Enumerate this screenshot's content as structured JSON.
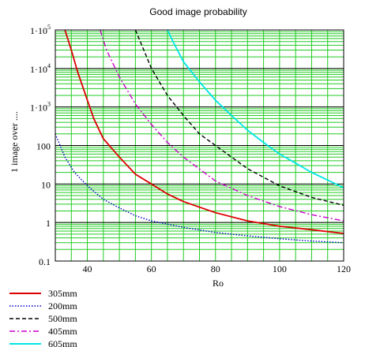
{
  "chart_data": {
    "type": "line",
    "title": "Good image probability",
    "xlabel": "Ro",
    "ylabel": "1 image over ....",
    "xlim": [
      30,
      120
    ],
    "ylim": [
      0.1,
      100000
    ],
    "yscale": "log",
    "grid": true,
    "grid_color": "#22cc22",
    "x_ticks": [
      40,
      60,
      80,
      100,
      120
    ],
    "x_tick_labels": [
      "40",
      "60",
      "80",
      "100",
      "120"
    ],
    "y_ticks": [
      0.1,
      1,
      10,
      100,
      1000,
      10000,
      100000
    ],
    "y_tick_labels": [
      {
        "base": "0.1",
        "exp": ""
      },
      {
        "base": "1",
        "exp": ""
      },
      {
        "base": "10",
        "exp": ""
      },
      {
        "base": "100",
        "exp": ""
      },
      {
        "base": "1·10",
        "exp": "3"
      },
      {
        "base": "1·10",
        "exp": "4"
      },
      {
        "base": "1·10",
        "exp": "5"
      }
    ],
    "legend_position": "bottom-left",
    "series": [
      {
        "name": "305mm",
        "color": "#dd0000",
        "dash": "solid",
        "x": [
          33,
          35,
          37,
          40,
          42,
          45,
          50,
          55,
          60,
          65,
          70,
          80,
          90,
          100,
          110,
          120
        ],
        "y": [
          100000,
          30000,
          8000,
          1500,
          500,
          150,
          50,
          18,
          10,
          5.5,
          3.5,
          1.8,
          1.1,
          0.8,
          0.65,
          0.52
        ]
      },
      {
        "name": "200mm",
        "color": "#0000cc",
        "dash": "dotted",
        "x": [
          30,
          33,
          36,
          40,
          45,
          50,
          55,
          60,
          70,
          80,
          90,
          100,
          110,
          120
        ],
        "y": [
          200,
          50,
          20,
          9,
          4,
          2.4,
          1.5,
          1.1,
          0.75,
          0.55,
          0.45,
          0.38,
          0.33,
          0.3
        ]
      },
      {
        "name": "500mm",
        "color": "#000000",
        "dash": "dashed",
        "x": [
          55,
          57,
          60,
          65,
          70,
          75,
          80,
          90,
          100,
          110,
          120
        ],
        "y": [
          100000,
          40000,
          10000,
          2000,
          600,
          200,
          100,
          25,
          9,
          4.5,
          2.8
        ]
      },
      {
        "name": "405mm",
        "color": "#cc00cc",
        "dash": "dashdot",
        "x": [
          44,
          46,
          50,
          55,
          60,
          65,
          70,
          80,
          90,
          100,
          110,
          120
        ],
        "y": [
          100000,
          30000,
          6000,
          1200,
          350,
          120,
          50,
          12,
          5,
          2.6,
          1.6,
          1.1
        ]
      },
      {
        "name": "605mm",
        "color": "#00e5e5",
        "dash": "solid",
        "x": [
          65,
          67,
          70,
          75,
          80,
          85,
          90,
          95,
          100,
          110,
          120
        ],
        "y": [
          100000,
          45000,
          15000,
          4500,
          1500,
          600,
          250,
          120,
          60,
          20,
          8
        ]
      }
    ]
  }
}
